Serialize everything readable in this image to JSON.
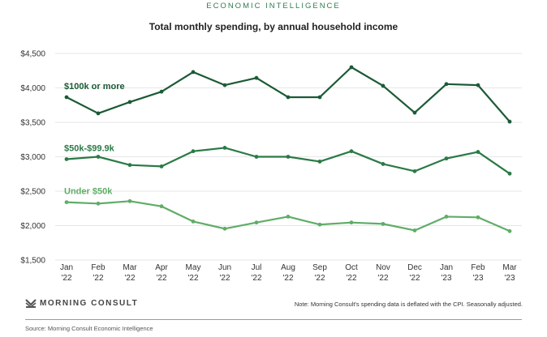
{
  "header": {
    "kicker": "ECONOMIC INTELLIGENCE",
    "title": "Total monthly spending, by annual household income"
  },
  "footer": {
    "brand": "MORNING CONSULT",
    "brand_icon": "morning-consult-logo-icon",
    "note": "Note: Morning Consult's spending data is deflated with the CPI. Seasonally adjusted.",
    "source": "Source: Morning Consult Economic Intelligence"
  },
  "chart_data": {
    "type": "line",
    "title": "Total monthly spending, by annual household income",
    "xlabel": "",
    "ylabel": "",
    "ylim": [
      1500,
      4500
    ],
    "yticks": [
      4500,
      4000,
      3500,
      3000,
      2500,
      2000,
      1500
    ],
    "ytick_labels": [
      "$4,500",
      "$4,000",
      "$3,500",
      "$3,000",
      "$2,500",
      "$2,000",
      "$1,500"
    ],
    "grid": true,
    "legend": "inline-labels",
    "categories": [
      [
        "Jan",
        "'22"
      ],
      [
        "Feb",
        "'22"
      ],
      [
        "Mar",
        "'22"
      ],
      [
        "Apr",
        "'22"
      ],
      [
        "May",
        "'22"
      ],
      [
        "Jun",
        "'22"
      ],
      [
        "Jul",
        "'22"
      ],
      [
        "Aug",
        "'22"
      ],
      [
        "Sep",
        "'22"
      ],
      [
        "Oct",
        "'22"
      ],
      [
        "Nov",
        "'22"
      ],
      [
        "Dec",
        "'22"
      ],
      [
        "Jan",
        "'23"
      ],
      [
        "Feb",
        "'23"
      ],
      [
        "Mar",
        "'23"
      ]
    ],
    "series": [
      {
        "name": "$100k or more",
        "color": "#1b5a36",
        "values": [
          3865,
          3630,
          3795,
          3945,
          4230,
          4040,
          4145,
          3865,
          3865,
          4300,
          4030,
          3640,
          4055,
          4040,
          3510
        ]
      },
      {
        "name": "$50k-$99.9k",
        "color": "#2a7a45",
        "values": [
          2965,
          3000,
          2880,
          2860,
          3080,
          3130,
          3000,
          3000,
          2930,
          3080,
          2895,
          2790,
          2975,
          3070,
          2755
        ]
      },
      {
        "name": "Under $50k",
        "color": "#5fad67",
        "values": [
          2340,
          2320,
          2355,
          2280,
          2060,
          1955,
          2045,
          2130,
          2015,
          2045,
          2025,
          1930,
          2130,
          2120,
          1920
        ]
      }
    ]
  }
}
